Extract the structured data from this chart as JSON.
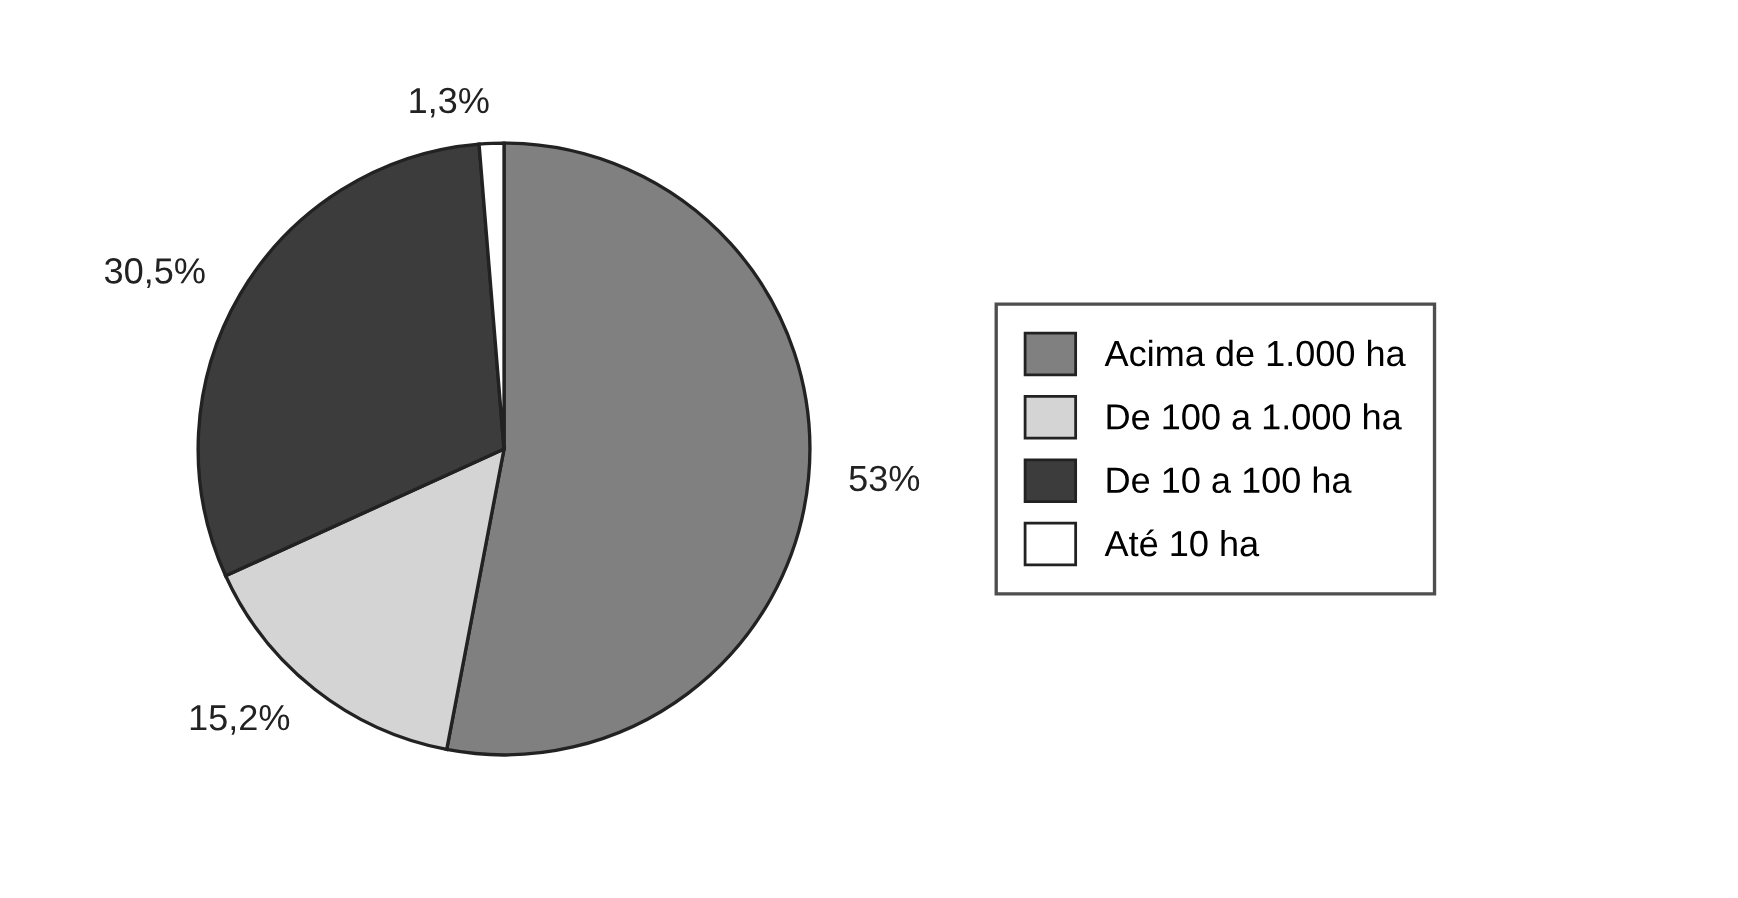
{
  "chart_data": {
    "type": "pie",
    "categories": [
      "Acima de 1.000 ha",
      "De 100 a 1.000 ha",
      "De 10 a 100 ha",
      "Até 10 ha"
    ],
    "values": [
      53,
      15.2,
      30.5,
      1.3
    ],
    "colors": [
      "#808080",
      "#d4d4d4",
      "#3c3c3c",
      "#ffffff"
    ],
    "value_labels": [
      "53%",
      "15,2%",
      "30,5%",
      "1,3%"
    ],
    "legend": "right"
  }
}
